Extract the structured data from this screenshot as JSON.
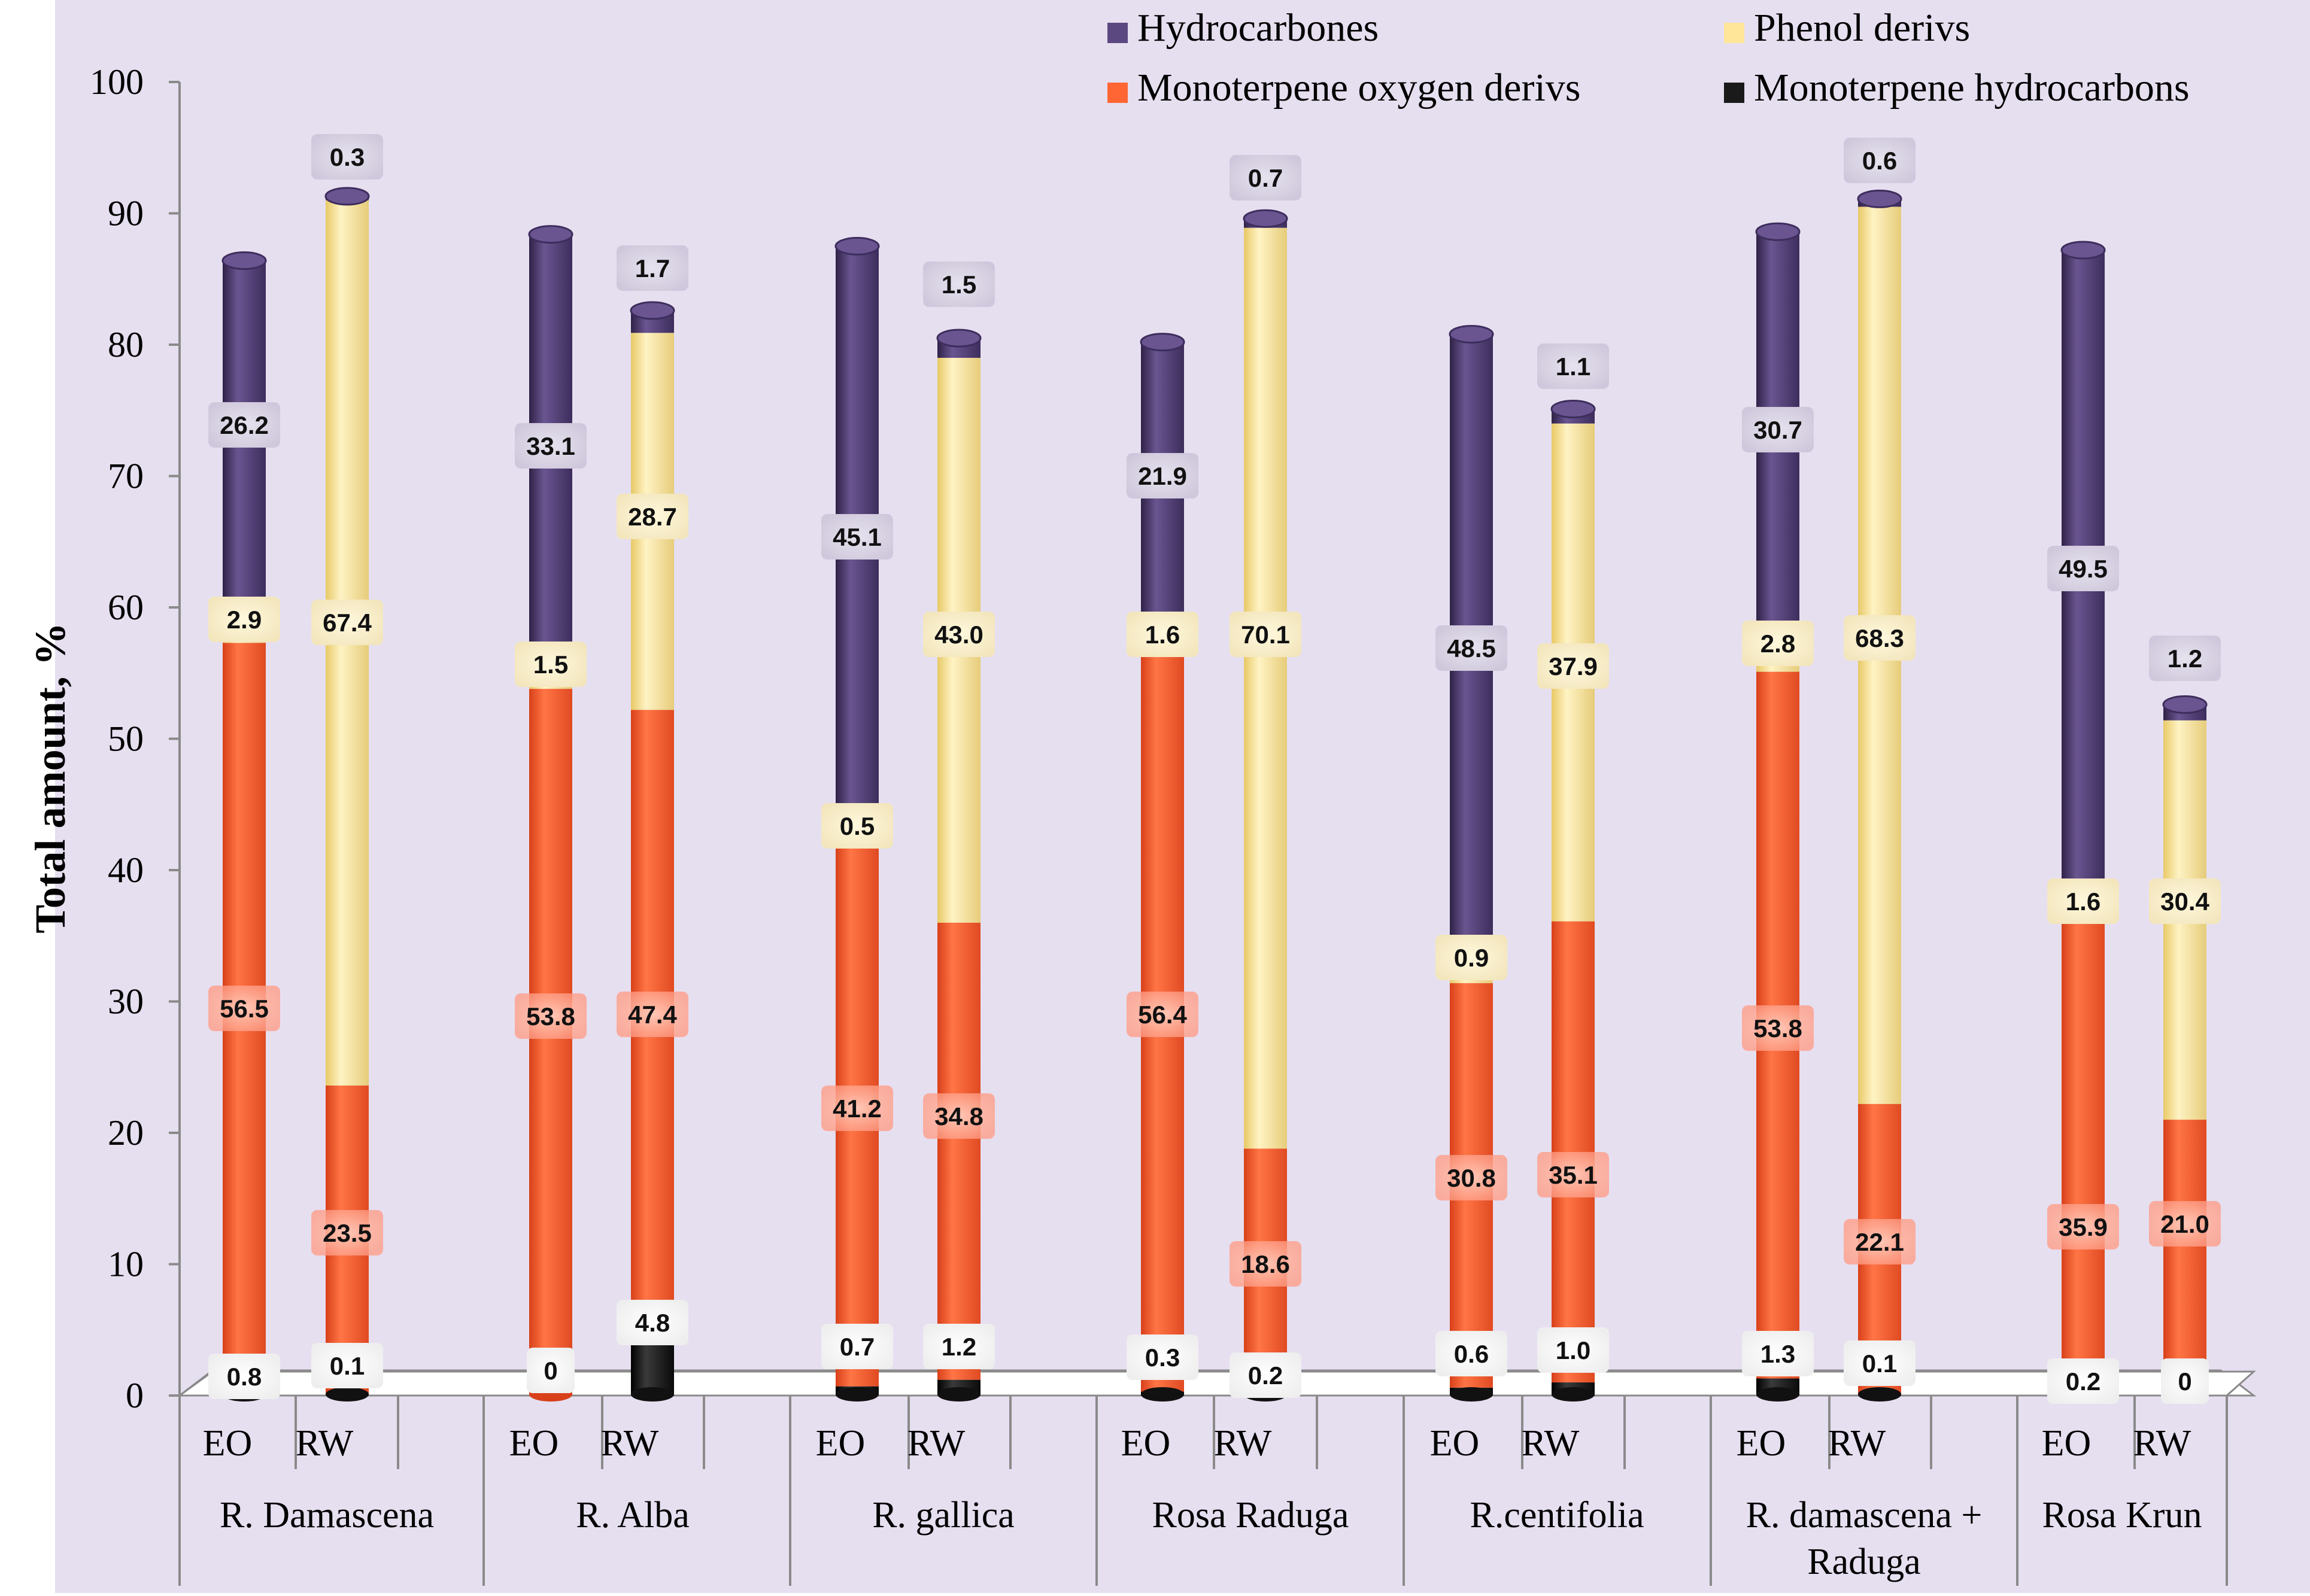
{
  "chart_data": {
    "type": "bar",
    "stacked": true,
    "title": "",
    "ylabel": "Total amount, %",
    "xlabel": "",
    "ylim": [
      0,
      100
    ],
    "yticks": [
      0,
      10,
      20,
      30,
      40,
      50,
      60,
      70,
      80,
      90,
      100
    ],
    "grid": false,
    "legend_position": "top-right",
    "groups": [
      "R. Damascena",
      "R. Alba",
      "R. gallica",
      "Rosa Raduga",
      "R.centifolia",
      "R. damascena + Raduga",
      "Rosa Krun"
    ],
    "subcategories": [
      "EO",
      "RW"
    ],
    "series": [
      {
        "name": "Monoterpene hydrocarbons",
        "color": "#1a1a1a",
        "values": [
          0.8,
          0.1,
          0,
          4.8,
          0.7,
          1.2,
          0.3,
          0.2,
          0.6,
          1.0,
          1.3,
          0.1,
          0.2,
          0
        ]
      },
      {
        "name": "Monoterpene oxygen derivs",
        "color": "#ff6633",
        "values": [
          56.5,
          23.5,
          53.8,
          47.4,
          41.2,
          34.8,
          56.4,
          18.6,
          30.8,
          35.1,
          53.8,
          22.1,
          35.9,
          21.0
        ]
      },
      {
        "name": "Phenol derivs",
        "color": "#ffe699",
        "values": [
          2.9,
          67.4,
          1.5,
          28.7,
          0.5,
          43.0,
          1.6,
          70.1,
          0.9,
          37.9,
          2.8,
          68.3,
          1.6,
          30.4
        ]
      },
      {
        "name": "Hydrocarbones",
        "color": "#5c4880",
        "values": [
          26.2,
          0.3,
          33.1,
          1.7,
          45.1,
          1.5,
          21.9,
          0.7,
          48.5,
          1.1,
          30.7,
          0.6,
          49.5,
          1.2
        ]
      }
    ],
    "data_labels": [
      [
        "0.8",
        "0.1",
        "0",
        "4.8",
        "0.7",
        "1.2",
        "0.3",
        "0.2",
        "0.6",
        "1.0",
        "1.3",
        "0.1",
        "0.2",
        "0"
      ],
      [
        "56.5",
        "23.5",
        "53.8",
        "47.4",
        "41.2",
        "34.8",
        "56.4",
        "18.6",
        "30.8",
        "35.1",
        "53.8",
        "22.1",
        "35.9",
        "21.0"
      ],
      [
        "2.9",
        "67.4",
        "1.5",
        "28.7",
        "0.5",
        "43.0",
        "1.6",
        "70.1",
        "0.9",
        "37.9",
        "2.8",
        "68.3",
        "1.6",
        "30.4"
      ],
      [
        "26.2",
        "0.3",
        "33.1",
        "1.7",
        "45.1",
        "1.5",
        "21.9",
        "0.7",
        "48.5",
        "1.1",
        "30.7",
        "0.6",
        "49.5",
        "1.2"
      ]
    ],
    "legend": [
      {
        "label": "Hydrocarbones",
        "color": "#5c4880"
      },
      {
        "label": "Phenol derivs",
        "color": "#ffe699"
      },
      {
        "label": "Monoterpene oxygen derivs",
        "color": "#ff6633"
      },
      {
        "label": "Monoterpene hydrocarbons",
        "color": "#1a1a1a"
      }
    ],
    "background": "#e6dff0"
  }
}
